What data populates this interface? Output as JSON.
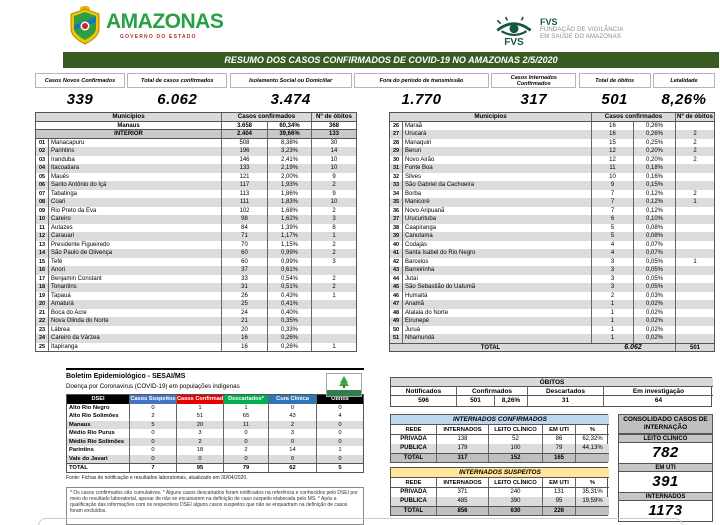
{
  "header": {
    "amazonas": {
      "name": "AMAZONAS",
      "sub": "GOVERNO DO ESTADO"
    },
    "fvs": {
      "abbr": "FVS",
      "line1": "FUNDAÇÃO DE VIGILÂNCIA",
      "line2": "EM SAÚDE DO AMAZONAS"
    }
  },
  "title_bar": "RESUMO DOS CASOS CONFIRMADOS DE COVID-19 NO AMAZONAS 2/5/2020",
  "stats": [
    {
      "label": "Casos Novos Confirmados",
      "value": "339"
    },
    {
      "label": "Total de casos confirmados",
      "value": "6.062"
    },
    {
      "label": "Isolamento Social ou Domiciliar",
      "value": "3.474"
    },
    {
      "label": "Fora do período de transmissão",
      "value": "1.770"
    },
    {
      "label": "Casos Internados Confirmados",
      "value": "317"
    },
    {
      "label": "Total de óbitos",
      "value": "501"
    },
    {
      "label": "Letalidade",
      "value": "8,26%"
    }
  ],
  "muni_table": {
    "headers": {
      "municipios": "Municípios",
      "casos": "Casos confirmados",
      "obitos": "Nº de óbitos"
    },
    "manaus_row": [
      "Manaus",
      "3.658",
      "60,34%",
      "368"
    ],
    "interior_row": [
      "INTERIOR",
      "2.404",
      "39,66%",
      "133"
    ],
    "left_rows": [
      [
        "01",
        "Manacapuru",
        "508",
        "8,38%",
        "30"
      ],
      [
        "02",
        "Parintins",
        "196",
        "3,23%",
        "14"
      ],
      [
        "03",
        "Iranduba",
        "146",
        "2,41%",
        "10"
      ],
      [
        "04",
        "Itacoatiara",
        "133",
        "2,19%",
        "10"
      ],
      [
        "05",
        "Maués",
        "121",
        "2,00%",
        "9"
      ],
      [
        "06",
        "Santo Antônio do Içá",
        "117",
        "1,93%",
        "2"
      ],
      [
        "07",
        "Tabatinga",
        "113",
        "1,86%",
        "9"
      ],
      [
        "08",
        "Coari",
        "111",
        "1,83%",
        "10"
      ],
      [
        "09",
        "Rio Preto da Eva",
        "102",
        "1,68%",
        "2"
      ],
      [
        "10",
        "Careiro",
        "98",
        "1,62%",
        "3"
      ],
      [
        "11",
        "Autazes",
        "84",
        "1,39%",
        "8"
      ],
      [
        "12",
        "Carauari",
        "71",
        "1,17%",
        "1"
      ],
      [
        "13",
        "Presidente Figueiredo",
        "70",
        "1,15%",
        "2"
      ],
      [
        "14",
        "São Paulo de Olivença",
        "60",
        "0,99%",
        "2"
      ],
      [
        "15",
        "Tefé",
        "60",
        "0,99%",
        "3"
      ],
      [
        "16",
        "Anori",
        "37",
        "0,61%",
        ""
      ],
      [
        "17",
        "Benjamin Constant",
        "33",
        "0,54%",
        "2"
      ],
      [
        "18",
        "Tonantins",
        "31",
        "0,51%",
        "2"
      ],
      [
        "19",
        "Tapauá",
        "26",
        "0,43%",
        "1"
      ],
      [
        "20",
        "Amaturá",
        "25",
        "0,41%",
        ""
      ],
      [
        "21",
        "Boca do Acre",
        "24",
        "0,40%",
        ""
      ],
      [
        "22",
        "Nova Olinda do Norte",
        "21",
        "0,35%",
        ""
      ],
      [
        "23",
        "Lábrea",
        "20",
        "0,33%",
        ""
      ],
      [
        "24",
        "Careiro da Várzea",
        "16",
        "0,26%",
        ""
      ],
      [
        "25",
        "Itapiranga",
        "16",
        "0,26%",
        "1"
      ]
    ],
    "right_rows": [
      [
        "26",
        "Maraã",
        "16",
        "0,26%",
        ""
      ],
      [
        "27",
        "Urucará",
        "16",
        "0,26%",
        "2"
      ],
      [
        "28",
        "Manaquiri",
        "15",
        "0,25%",
        "2"
      ],
      [
        "29",
        "Beruri",
        "12",
        "0,20%",
        "2"
      ],
      [
        "30",
        "Novo Airão",
        "12",
        "0,20%",
        "2"
      ],
      [
        "31",
        "Fonte Boa",
        "11",
        "0,18%",
        ""
      ],
      [
        "32",
        "Silves",
        "10",
        "0,16%",
        ""
      ],
      [
        "33",
        "São Gabriel da Cachoeira",
        "9",
        "0,15%",
        ""
      ],
      [
        "34",
        "Borba",
        "7",
        "0,12%",
        "2"
      ],
      [
        "35",
        "Manicoré",
        "7",
        "0,12%",
        "1"
      ],
      [
        "36",
        "Novo Aripuanã",
        "7",
        "0,12%",
        ""
      ],
      [
        "37",
        "Urucurituba",
        "6",
        "0,10%",
        ""
      ],
      [
        "38",
        "Caapiranga",
        "5",
        "0,08%",
        ""
      ],
      [
        "39",
        "Canutama",
        "5",
        "0,08%",
        ""
      ],
      [
        "40",
        "Codajás",
        "4",
        "0,07%",
        ""
      ],
      [
        "41",
        "Santa Isabel do Rio Negro",
        "4",
        "0,07%",
        ""
      ],
      [
        "42",
        "Barcelos",
        "3",
        "0,05%",
        "1"
      ],
      [
        "43",
        "Barreirinha",
        "3",
        "0,05%",
        ""
      ],
      [
        "44",
        "Jutaí",
        "3",
        "0,05%",
        ""
      ],
      [
        "45",
        "São Sebastião do Uatumã",
        "3",
        "0,05%",
        ""
      ],
      [
        "46",
        "Humaitá",
        "2",
        "0,03%",
        ""
      ],
      [
        "47",
        "Anamã",
        "1",
        "0,02%",
        ""
      ],
      [
        "48",
        "Atalaia do Norte",
        "1",
        "0,02%",
        ""
      ],
      [
        "49",
        "Eirunepé",
        "1",
        "0,02%",
        ""
      ],
      [
        "50",
        "Juruá",
        "1",
        "0,02%",
        ""
      ],
      [
        "51",
        "Nhamundá",
        "1",
        "0,02%",
        ""
      ]
    ],
    "total_row": {
      "label": "TOTAL",
      "cases": "6.062",
      "deaths": "501"
    }
  },
  "indigenous": {
    "title": "Boletim Epidemiológico - SESAI/MS",
    "subtitle": "Doença por Coronavirus (COVID-19) em populações indígenas",
    "col_headers": [
      {
        "label": "DSEI",
        "bg": "#000000"
      },
      {
        "label": "Casos Suspeitos",
        "bg": "#4472c4"
      },
      {
        "label": "Casos Confirmados",
        "bg": "#e60000"
      },
      {
        "label": "Descartados*",
        "bg": "#00b050"
      },
      {
        "label": "Cura Clínica",
        "bg": "#2e75b6"
      },
      {
        "label": "Óbitos",
        "bg": "#000000"
      }
    ],
    "rows": [
      [
        "Alto Rio Negro",
        "0",
        "1",
        "1",
        "0",
        "0"
      ],
      [
        "Alto Rio Solimões",
        "2",
        "51",
        "65",
        "43",
        "4"
      ],
      [
        "Manaus",
        "5",
        "20",
        "11",
        "2",
        "0"
      ],
      [
        "Médio Rio Purus",
        "0",
        "3",
        "0",
        "3",
        "0"
      ],
      [
        "Médio Rio Solimões",
        "0",
        "2",
        "0",
        "0",
        "0"
      ],
      [
        "Parintins",
        "0",
        "18",
        "2",
        "14",
        "1"
      ],
      [
        "Vale do Javari",
        "0",
        "0",
        "0",
        "0",
        "0"
      ]
    ],
    "total": [
      "TOTAL",
      "7",
      "95",
      "79",
      "62",
      "5"
    ],
    "fonte": "Fonte: Fichas de notificação e resultados laboratoriais, atualizado em 30/04/2020.",
    "footnote": "* Os casos confirmados são cumulativos. * Alguns casos descartados foram notificados na referência e conhecidos pelo DSEI por meio do resultado laboratorial, apesar de não se encaixarem na definição de caso suspeito elaborada pelo MS. * Após a qualificação das informações com os respectivos DSEI alguns casos suspeitos que não se enquadram na definição de casos foram excluídos."
  },
  "obitos": {
    "title": "ÓBITOS",
    "headers": [
      "Notificados",
      "Confirmados",
      "Descartados",
      "Em investigação"
    ],
    "values": [
      "596",
      "501",
      "8,26%",
      "31",
      "64"
    ]
  },
  "internados_confirmados": {
    "title": "INTERNADOS CONFIRMADOS",
    "headers": [
      "REDE",
      "INTERNADOS",
      "LEITO CLÍNICO",
      "EM UTI",
      "%"
    ],
    "rows": [
      [
        "PRIVADA",
        "138",
        "52",
        "86",
        "62,32%"
      ],
      [
        "PÚBLICA",
        "179",
        "100",
        "79",
        "44,13%"
      ]
    ],
    "total": [
      "TOTAL",
      "317",
      "152",
      "165",
      ""
    ]
  },
  "internados_suspeitos": {
    "title": "INTERNADOS SUSPEITOS",
    "headers": [
      "REDE",
      "INTERNADOS",
      "LEITO CLÍNICO",
      "EM UTI",
      "%"
    ],
    "rows": [
      [
        "PRIVADA",
        "371",
        "240",
        "131",
        "35,31%"
      ],
      [
        "PÚBLICA",
        "485",
        "390",
        "95",
        "19,59%"
      ]
    ],
    "total": [
      "TOTAL",
      "856",
      "630",
      "226",
      ""
    ]
  },
  "consolidado": {
    "title_line1": "CONSOLIDADO CASOS DE",
    "title_line2": "INTERNAÇÃO",
    "items": [
      {
        "label": "LEITO CLÍNICO",
        "value": "782"
      },
      {
        "label": "EM UTI",
        "value": "391"
      },
      {
        "label": "INTERNADOS",
        "value": "1173"
      }
    ]
  },
  "colors": {
    "title_bar_bg": "#3a5a23",
    "suspeitos": "#4472c4",
    "confirmados": "#e60000",
    "descartados": "#00b050",
    "cura": "#2e75b6",
    "conf_title": "#bdd7ee",
    "susp_title": "#ffe699"
  }
}
